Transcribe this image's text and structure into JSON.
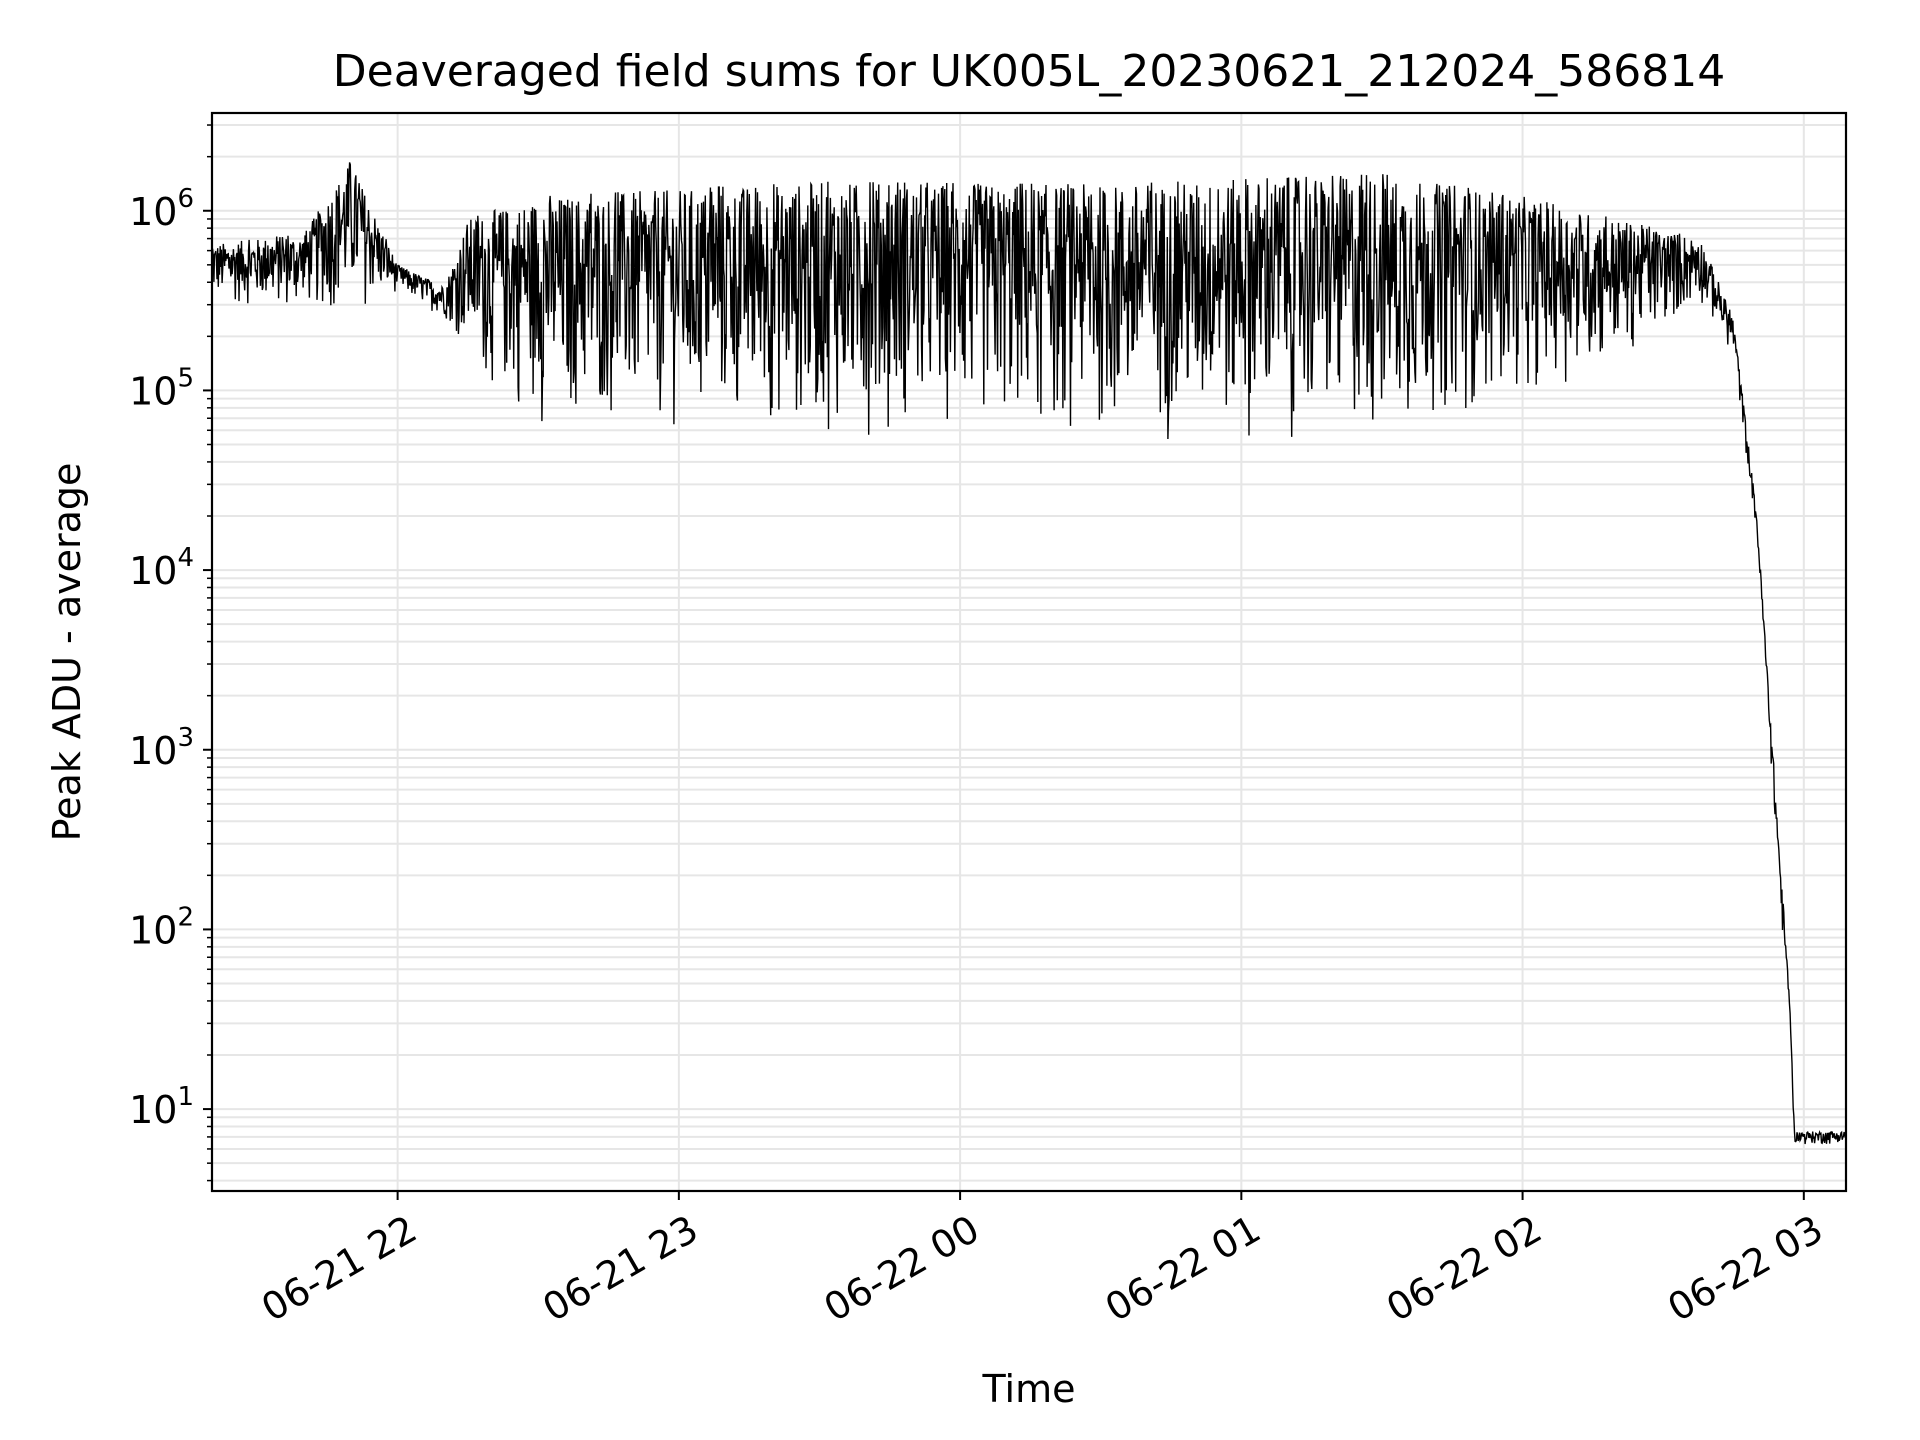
{
  "chart_data": {
    "type": "line",
    "title": "Deaveraged field sums for UK005L_20230621_212024_586814",
    "xlabel": "Time",
    "ylabel": "Peak ADU - average",
    "yscale": "log",
    "ylim": [
      3.5,
      3500000
    ],
    "xlim": [
      "2023-06-21 21:20:24",
      "2023-06-22 03:09:00"
    ],
    "grid": true,
    "grid_minor": true,
    "line_color": "#000000",
    "grid_color": "#e6e6e6",
    "x_ticks": [
      {
        "t": "2023-06-21 22:00",
        "label": "06-21 22"
      },
      {
        "t": "2023-06-21 23:00",
        "label": "06-21 23"
      },
      {
        "t": "2023-06-22 00:00",
        "label": "06-22 00"
      },
      {
        "t": "2023-06-22 01:00",
        "label": "06-22 01"
      },
      {
        "t": "2023-06-22 02:00",
        "label": "06-22 02"
      },
      {
        "t": "2023-06-22 03:00",
        "label": "06-22 03"
      }
    ],
    "y_ticks": [
      {
        "value": 10,
        "base": "10",
        "exp": "1"
      },
      {
        "value": 100,
        "base": "10",
        "exp": "2"
      },
      {
        "value": 1000,
        "base": "10",
        "exp": "3"
      },
      {
        "value": 10000,
        "base": "10",
        "exp": "4"
      },
      {
        "value": 100000,
        "base": "10",
        "exp": "5"
      },
      {
        "value": 1000000,
        "base": "10",
        "exp": "6"
      }
    ],
    "series": [
      {
        "upper_envelope": [
          {
            "t": "2023-06-21 21:20:24",
            "y": 650000
          },
          {
            "t": "2023-06-21 21:40",
            "y": 750000
          },
          {
            "t": "2023-06-21 21:50",
            "y": 1900000
          },
          {
            "t": "2023-06-21 22:00",
            "y": 500000
          },
          {
            "t": "2023-06-21 22:10",
            "y": 380000
          },
          {
            "t": "2023-06-21 22:15",
            "y": 900000
          },
          {
            "t": "2023-06-21 22:30",
            "y": 1200000
          },
          {
            "t": "2023-06-21 23:30",
            "y": 1450000
          },
          {
            "t": "2023-06-22 00:30",
            "y": 1400000
          },
          {
            "t": "2023-06-22 01:30",
            "y": 1600000
          },
          {
            "t": "2023-06-22 02:00",
            "y": 1200000
          },
          {
            "t": "2023-06-22 02:20",
            "y": 900000
          },
          {
            "t": "2023-06-22 02:38",
            "y": 700000
          },
          {
            "t": "2023-06-22 02:45",
            "y": 250000
          },
          {
            "t": "2023-06-22 02:50",
            "y": 20000
          },
          {
            "t": "2023-06-22 02:55",
            "y": 240
          },
          {
            "t": "2023-06-22 02:57",
            "y": 40
          },
          {
            "t": "2023-06-22 02:58",
            "y": 7.5
          },
          {
            "t": "2023-06-22 03:09",
            "y": 7.5
          }
        ],
        "lower_envelope": [
          {
            "t": "2023-06-21 21:20:24",
            "y": 300000
          },
          {
            "t": "2023-06-21 21:50",
            "y": 250000
          },
          {
            "t": "2023-06-21 22:00",
            "y": 350000
          },
          {
            "t": "2023-06-21 22:10",
            "y": 250000
          },
          {
            "t": "2023-06-21 22:20",
            "y": 90000
          },
          {
            "t": "2023-06-21 22:30",
            "y": 60000
          },
          {
            "t": "2023-06-21 23:00",
            "y": 55000
          },
          {
            "t": "2023-06-22 00:00",
            "y": 55000
          },
          {
            "t": "2023-06-22 00:45",
            "y": 48000
          },
          {
            "t": "2023-06-22 01:30",
            "y": 50000
          },
          {
            "t": "2023-06-22 02:00",
            "y": 90000
          },
          {
            "t": "2023-06-22 02:20",
            "y": 130000
          },
          {
            "t": "2023-06-22 02:38",
            "y": 300000
          },
          {
            "t": "2023-06-22 02:45",
            "y": 150000
          },
          {
            "t": "2023-06-22 02:50",
            "y": 15000
          },
          {
            "t": "2023-06-22 02:55",
            "y": 120
          },
          {
            "t": "2023-06-22 02:57",
            "y": 35
          },
          {
            "t": "2023-06-22 02:58",
            "y": 6.3
          },
          {
            "t": "2023-06-22 03:09",
            "y": 6.3
          }
        ]
      }
    ]
  }
}
